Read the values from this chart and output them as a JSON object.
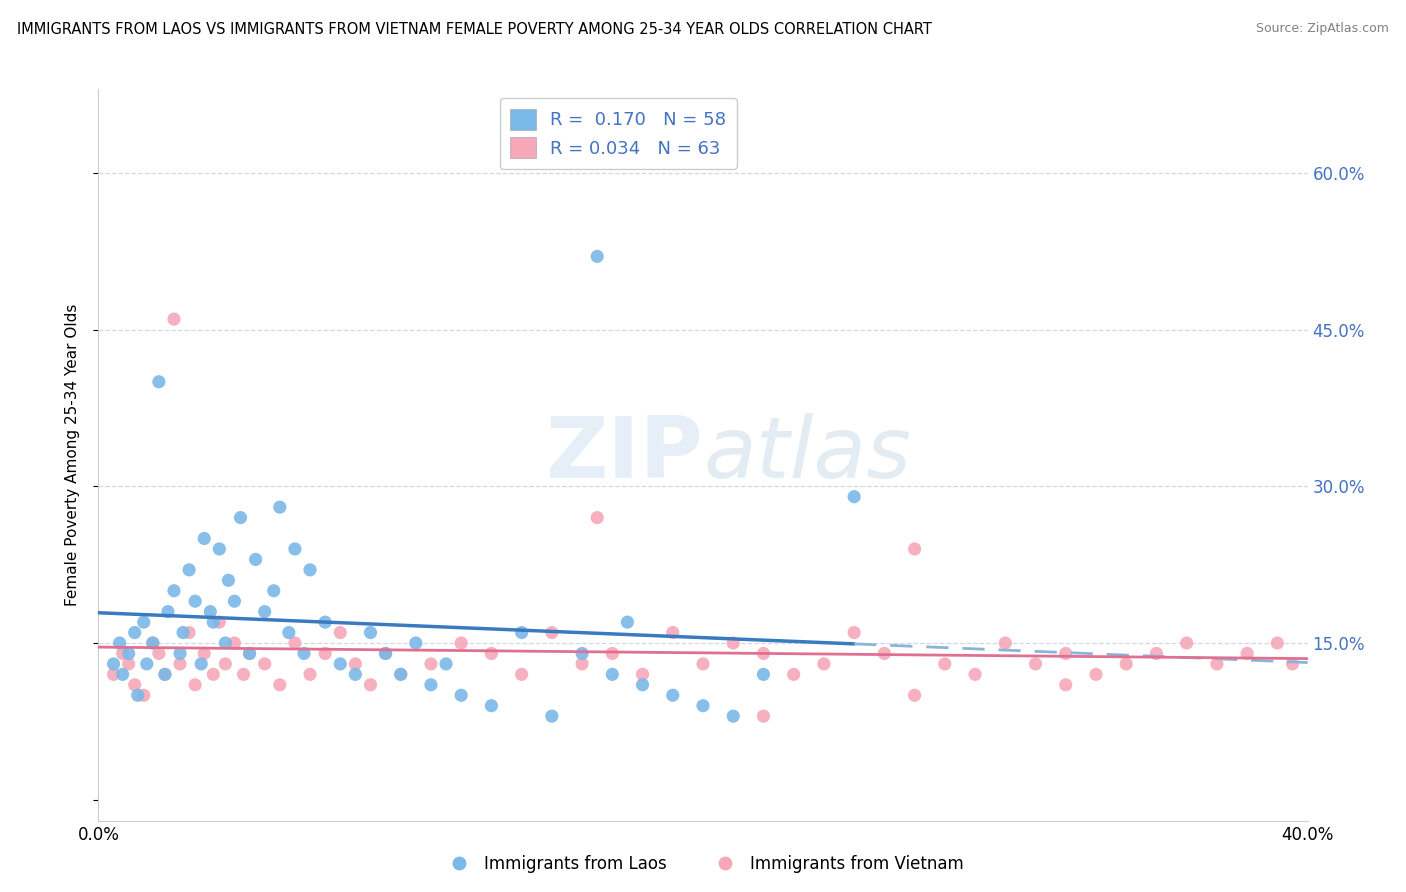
{
  "title": "IMMIGRANTS FROM LAOS VS IMMIGRANTS FROM VIETNAM FEMALE POVERTY AMONG 25-34 YEAR OLDS CORRELATION CHART",
  "source": "Source: ZipAtlas.com",
  "ylabel": "Female Poverty Among 25-34 Year Olds",
  "y_ticks": [
    0.0,
    0.15,
    0.3,
    0.45,
    0.6
  ],
  "y_tick_labels_right": [
    "",
    "15.0%",
    "30.0%",
    "45.0%",
    "60.0%"
  ],
  "xlim": [
    0.0,
    0.4
  ],
  "ylim": [
    -0.02,
    0.68
  ],
  "laos_R": 0.17,
  "laos_N": 58,
  "vietnam_R": 0.034,
  "vietnam_N": 63,
  "laos_color": "#7ab8e8",
  "vietnam_color": "#f7a8b8",
  "laos_line_color": "#3a7abf",
  "laos_line_dash_color": "#8ab4d8",
  "vietnam_line_color": "#e07090",
  "grid_color": "#d0d8e8",
  "laos_x": [
    0.005,
    0.007,
    0.008,
    0.01,
    0.012,
    0.013,
    0.015,
    0.016,
    0.018,
    0.02,
    0.022,
    0.023,
    0.025,
    0.027,
    0.028,
    0.03,
    0.032,
    0.034,
    0.035,
    0.037,
    0.038,
    0.04,
    0.042,
    0.043,
    0.045,
    0.047,
    0.05,
    0.052,
    0.055,
    0.058,
    0.06,
    0.063,
    0.065,
    0.068,
    0.07,
    0.075,
    0.08,
    0.085,
    0.09,
    0.095,
    0.1,
    0.105,
    0.11,
    0.115,
    0.12,
    0.13,
    0.14,
    0.15,
    0.16,
    0.165,
    0.17,
    0.175,
    0.18,
    0.19,
    0.2,
    0.21,
    0.22,
    0.25
  ],
  "laos_y": [
    0.13,
    0.15,
    0.12,
    0.14,
    0.16,
    0.1,
    0.17,
    0.13,
    0.15,
    0.4,
    0.12,
    0.18,
    0.2,
    0.14,
    0.16,
    0.22,
    0.19,
    0.13,
    0.25,
    0.18,
    0.17,
    0.24,
    0.15,
    0.21,
    0.19,
    0.27,
    0.14,
    0.23,
    0.18,
    0.2,
    0.28,
    0.16,
    0.24,
    0.14,
    0.22,
    0.17,
    0.13,
    0.12,
    0.16,
    0.14,
    0.12,
    0.15,
    0.11,
    0.13,
    0.1,
    0.09,
    0.16,
    0.08,
    0.14,
    0.52,
    0.12,
    0.17,
    0.11,
    0.1,
    0.09,
    0.08,
    0.12,
    0.29
  ],
  "vietnam_x": [
    0.005,
    0.008,
    0.01,
    0.012,
    0.015,
    0.018,
    0.02,
    0.022,
    0.025,
    0.027,
    0.03,
    0.032,
    0.035,
    0.038,
    0.04,
    0.042,
    0.045,
    0.048,
    0.05,
    0.055,
    0.06,
    0.065,
    0.07,
    0.075,
    0.08,
    0.085,
    0.09,
    0.095,
    0.1,
    0.11,
    0.12,
    0.13,
    0.14,
    0.15,
    0.16,
    0.165,
    0.17,
    0.18,
    0.19,
    0.2,
    0.21,
    0.22,
    0.23,
    0.24,
    0.25,
    0.26,
    0.27,
    0.28,
    0.29,
    0.3,
    0.31,
    0.32,
    0.33,
    0.34,
    0.35,
    0.36,
    0.37,
    0.38,
    0.39,
    0.395,
    0.22,
    0.27,
    0.32
  ],
  "vietnam_y": [
    0.12,
    0.14,
    0.13,
    0.11,
    0.1,
    0.15,
    0.14,
    0.12,
    0.46,
    0.13,
    0.16,
    0.11,
    0.14,
    0.12,
    0.17,
    0.13,
    0.15,
    0.12,
    0.14,
    0.13,
    0.11,
    0.15,
    0.12,
    0.14,
    0.16,
    0.13,
    0.11,
    0.14,
    0.12,
    0.13,
    0.15,
    0.14,
    0.12,
    0.16,
    0.13,
    0.27,
    0.14,
    0.12,
    0.16,
    0.13,
    0.15,
    0.14,
    0.12,
    0.13,
    0.16,
    0.14,
    0.1,
    0.13,
    0.12,
    0.15,
    0.13,
    0.14,
    0.12,
    0.13,
    0.14,
    0.15,
    0.13,
    0.14,
    0.15,
    0.13,
    0.08,
    0.24,
    0.11
  ]
}
